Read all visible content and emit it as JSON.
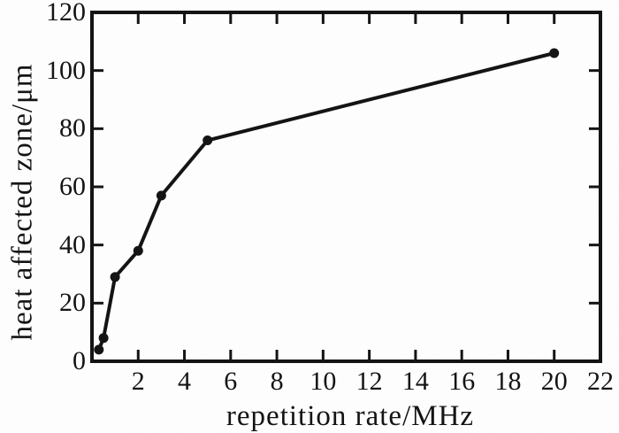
{
  "figure": {
    "background": "#ffffff",
    "ink": "#141414"
  },
  "chart_data": {
    "type": "line",
    "title": "",
    "xlabel": "repetition rate/MHz",
    "ylabel": "heat affected zone/μm",
    "series": [
      {
        "name": "heat affected zone",
        "x": [
          0.3,
          0.5,
          1,
          2,
          3,
          5,
          20
        ],
        "y": [
          4,
          8,
          29,
          38,
          57,
          76,
          106
        ]
      }
    ],
    "xlim": [
      0,
      22
    ],
    "ylim": [
      0,
      120
    ],
    "xticks": [
      2,
      4,
      6,
      8,
      10,
      12,
      14,
      16,
      18,
      20,
      22
    ],
    "yticks": [
      0,
      20,
      40,
      60,
      80,
      100,
      120
    ],
    "grid": false,
    "legend": null,
    "line_color": "#141414",
    "marker": "circle",
    "marker_size": 11,
    "tick_direction": "in"
  }
}
